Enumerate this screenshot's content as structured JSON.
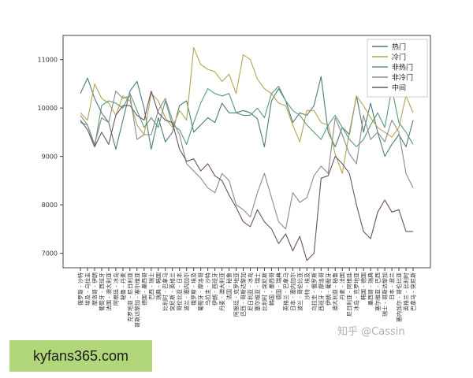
{
  "chart_data": {
    "type": "line",
    "title": "",
    "xlabel": "",
    "ylabel": "",
    "ylim": [
      6700,
      11500
    ],
    "yticks": [
      7000,
      8000,
      9000,
      10000,
      11000
    ],
    "grid": false,
    "legend_position": "top-right",
    "categories": [
      "俄罗斯 - 沙特",
      "埃及 - 乌拉圭",
      "摩洛哥 - 伊朗",
      "葡萄牙 - 西班牙",
      "法国 - 澳大利亚",
      "阿根廷 - 冰岛",
      "秘鲁 - 丹麦",
      "克罗地亚 - 尼日利亚",
      "哥斯达黎加 - 塞尔维亚",
      "德国 - 墨西哥",
      "巴西 - 瑞士",
      "瑞典 - 韩国",
      "比利时 - 巴拿马",
      "突尼斯 - 英格兰",
      "哥伦比亚 - 日本",
      "波兰 - 塞内加尔",
      "俄罗斯 - 埃及",
      "葡萄牙 - 摩洛哥",
      "乌拉圭 - 沙特",
      "伊朗 - 西班牙",
      "丹麦 - 澳大利亚",
      "法国 - 秘鲁",
      "阿根廷 - 克罗地亚",
      "巴西 - 哥斯达黎加",
      "尼日利亚 - 冰岛",
      "塞尔维亚 - 瑞士",
      "比利时 - 突尼斯",
      "韩国 - 墨西哥",
      "德国 - 瑞典",
      "英格兰 - 巴拿马",
      "日本 - 塞内加尔",
      "波兰 - 哥伦比亚",
      "沙特 - 埃及",
      "乌拉圭 - 俄罗斯",
      "西班牙 - 摩洛哥",
      "伊朗 - 葡萄牙",
      "澳大利亚 - 秘鲁",
      "丹麦 - 法国",
      "尼日利亚 - 阿根廷",
      "冰岛 - 克罗地亚",
      "韩国 - 德国",
      "墨西哥 - 瑞典",
      "塞尔维亚 - 巴西",
      "瑞士 - 哥斯达黎加",
      "日本 - 波兰",
      "塞内加尔 - 哥伦比亚",
      "英格兰 - 比利时",
      "巴拿马 - 突尼斯"
    ],
    "series": [
      {
        "name": "热门",
        "color": "#4c7a7a",
        "values": [
          10300,
          10620,
          10200,
          9900,
          9700,
          9150,
          9750,
          10350,
          10550,
          10000,
          9150,
          9800,
          9300,
          9500,
          10050,
          10150,
          9500,
          9650,
          9800,
          9700,
          10100,
          9900,
          9900,
          9950,
          9900,
          9780,
          9200,
          10150,
          10400,
          10150,
          9700,
          9900,
          9850,
          10050,
          10650,
          9500,
          9200,
          9600,
          9450,
          10250,
          9500,
          10100,
          9500,
          9000,
          9250,
          9450,
          9200,
          9750
        ]
      },
      {
        "name": "冷门",
        "color": "#b3a552",
        "values": [
          9900,
          9750,
          10500,
          10200,
          10100,
          9850,
          10250,
          10150,
          9650,
          9450,
          10300,
          10150,
          9800,
          9600,
          9950,
          9750,
          11250,
          10900,
          10800,
          10750,
          10550,
          10700,
          10300,
          11100,
          11000,
          10600,
          10400,
          10300,
          10100,
          10050,
          9650,
          9300,
          9950,
          9950,
          9700,
          9650,
          9050,
          8650,
          9500,
          10250,
          10050,
          9800,
          9600,
          9500,
          9400,
          9600,
          10250,
          9900
        ]
      },
      {
        "name": "非热门",
        "color": "#5a9a74",
        "values": [
          9700,
          9650,
          9200,
          10050,
          10150,
          10100,
          10000,
          10300,
          9950,
          9600,
          9800,
          9600,
          10150,
          9650,
          9550,
          9250,
          9700,
          10100,
          10400,
          10300,
          10250,
          10300,
          9900,
          9850,
          9850,
          10000,
          9800,
          10300,
          10450,
          10150,
          9950,
          9850,
          9650,
          9500,
          9350,
          9650,
          9850,
          9600,
          9350,
          9200,
          9350,
          9650,
          9900,
          9600,
          10400,
          9700,
          9500,
          9250
        ]
      },
      {
        "name": "非冷门",
        "color": "#8a8a8a",
        "values": [
          9850,
          9650,
          9250,
          9800,
          9700,
          10350,
          10200,
          10250,
          9350,
          9450,
          9450,
          9950,
          10200,
          9750,
          9450,
          8850,
          8700,
          8550,
          8350,
          8250,
          8650,
          8500,
          8000,
          7900,
          7750,
          8250,
          8650,
          8150,
          7650,
          7500,
          8250,
          8050,
          8150,
          8600,
          8800,
          8650,
          9800,
          9450,
          9050,
          8850,
          9850,
          9350,
          9500,
          9300,
          9750,
          9500,
          8650,
          8350
        ]
      },
      {
        "name": "中间",
        "color": "#6e5060",
        "values": [
          9750,
          9550,
          9200,
          9500,
          9250,
          9850,
          10050,
          10050,
          9850,
          9750,
          10350,
          9900,
          9750,
          9700,
          9150,
          8900,
          8950,
          8700,
          8850,
          8600,
          8500,
          8200,
          7950,
          7650,
          7550,
          7900,
          7650,
          7500,
          7200,
          7400,
          7050,
          7350,
          6850,
          7000,
          8550,
          8600,
          9000,
          8850,
          8650,
          8000,
          7450,
          7300,
          7850,
          8100,
          7850,
          7900,
          7450,
          7450
        ]
      }
    ]
  },
  "watermark": "知乎 @Cassin",
  "site_badge": "kyfans365.com"
}
